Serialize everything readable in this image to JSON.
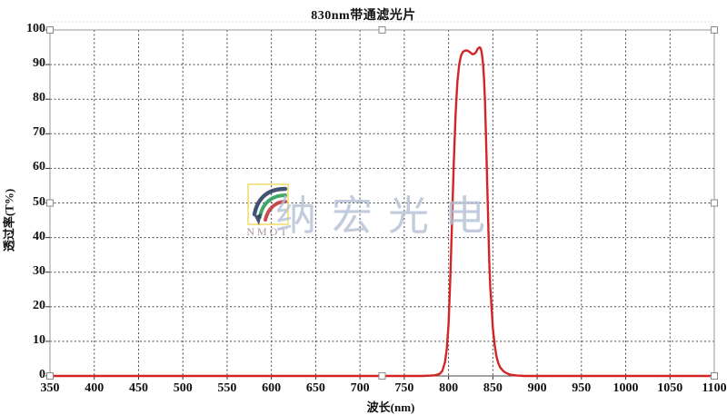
{
  "chart_data": {
    "type": "line",
    "title": "830nm带通滤光片",
    "xlabel": "波长(nm)",
    "ylabel": "透过率(T%)",
    "xlim": [
      350,
      1100
    ],
    "ylim": [
      0,
      100
    ],
    "x_ticks": [
      350,
      400,
      450,
      500,
      550,
      600,
      650,
      700,
      750,
      800,
      850,
      900,
      950,
      1000,
      1050,
      1100
    ],
    "y_ticks": [
      0,
      10,
      20,
      30,
      40,
      50,
      60,
      70,
      80,
      90,
      100
    ],
    "grid": true,
    "legend_position": "none",
    "line_color": "#d42525",
    "grid_color": "#4a4a4a",
    "border_color": "#a8a8a8",
    "series": [
      {
        "points": [
          [
            350,
            0
          ],
          [
            400,
            0
          ],
          [
            450,
            0
          ],
          [
            500,
            0
          ],
          [
            550,
            0
          ],
          [
            600,
            0
          ],
          [
            650,
            0
          ],
          [
            700,
            0
          ],
          [
            750,
            0
          ],
          [
            770,
            0
          ],
          [
            780,
            0.1
          ],
          [
            785,
            0.2
          ],
          [
            790,
            0.6
          ],
          [
            793,
            1.5
          ],
          [
            796,
            4
          ],
          [
            798,
            8
          ],
          [
            800,
            15
          ],
          [
            802,
            28
          ],
          [
            804,
            45
          ],
          [
            806,
            62
          ],
          [
            808,
            76
          ],
          [
            810,
            85
          ],
          [
            812,
            90
          ],
          [
            814,
            92.5
          ],
          [
            816,
            93.6
          ],
          [
            818,
            94
          ],
          [
            821,
            94.1
          ],
          [
            824,
            93.6
          ],
          [
            827,
            93
          ],
          [
            829,
            93.1
          ],
          [
            831,
            93.6
          ],
          [
            833,
            94.6
          ],
          [
            835,
            95
          ],
          [
            836,
            94.8
          ],
          [
            837,
            94
          ],
          [
            838,
            92.5
          ],
          [
            839,
            90
          ],
          [
            840,
            86
          ],
          [
            841,
            80
          ],
          [
            842,
            72
          ],
          [
            843,
            62
          ],
          [
            844,
            52
          ],
          [
            845,
            42
          ],
          [
            846,
            33
          ],
          [
            847,
            26
          ],
          [
            848,
            22
          ],
          [
            850,
            14
          ],
          [
            852,
            9
          ],
          [
            854,
            5.8
          ],
          [
            856,
            3.8
          ],
          [
            858,
            2.6
          ],
          [
            861,
            1.6
          ],
          [
            864,
            1
          ],
          [
            868,
            0.5
          ],
          [
            872,
            0.25
          ],
          [
            878,
            0.1
          ],
          [
            885,
            0
          ],
          [
            900,
            0
          ],
          [
            950,
            0
          ],
          [
            1000,
            0
          ],
          [
            1050,
            0
          ],
          [
            1100,
            0
          ]
        ]
      }
    ]
  },
  "watermark": {
    "logo_text": "NMOT",
    "text": "纳宏光电",
    "logo_colors": {
      "frame": "#f0da5e",
      "arc_outer": "#314063",
      "arc_middle": "#2fa05a",
      "arc_inner": "#c03a3a"
    }
  },
  "selection": {
    "handle_fill": "#ffffff",
    "handle_border": "#8a8a8a"
  }
}
